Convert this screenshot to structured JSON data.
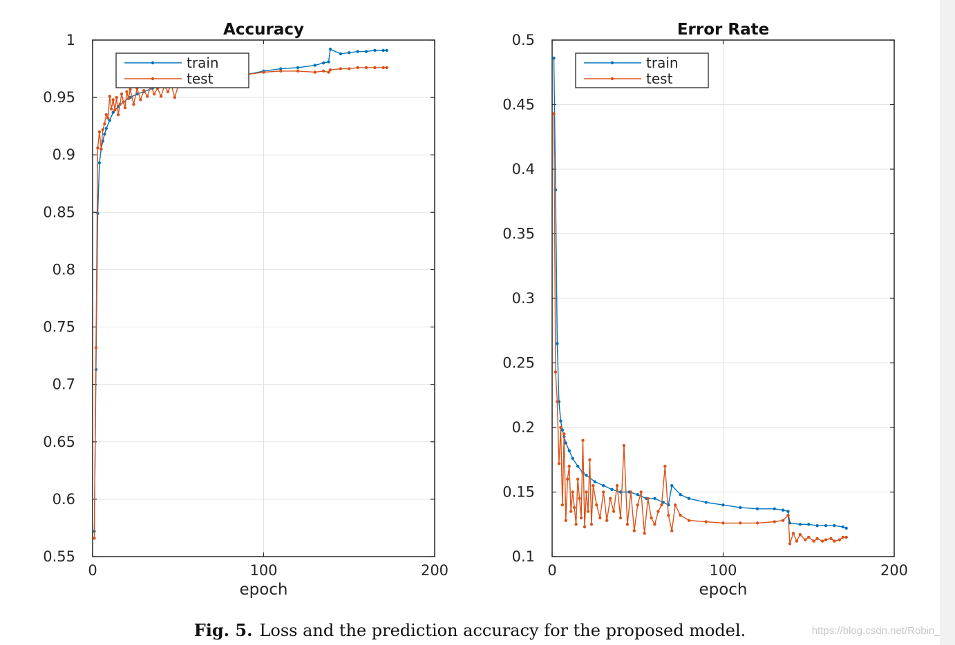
{
  "caption": {
    "label": "Fig. 5.",
    "text": "Loss and the prediction accuracy for the proposed model."
  },
  "watermark": "https://blog.csdn.net/Robin_Pi",
  "chart_data": [
    {
      "type": "line",
      "title": "Accuracy",
      "xlabel": "epoch",
      "ylabel": "",
      "xlim": [
        0,
        200
      ],
      "ylim": [
        0.55,
        1
      ],
      "xticks": [
        0,
        100,
        200
      ],
      "yticks": [
        0.55,
        0.6,
        0.65,
        0.7,
        0.75,
        0.8,
        0.85,
        0.9,
        0.95,
        1
      ],
      "grid": true,
      "legend": "top-left",
      "series": [
        {
          "name": "train",
          "color": "#0072BD",
          "x": [
            1,
            2,
            3,
            4,
            5,
            6,
            7,
            8,
            10,
            12,
            15,
            18,
            22,
            26,
            30,
            35,
            40,
            45,
            50,
            60,
            70,
            80,
            90,
            100,
            110,
            120,
            130,
            135,
            138,
            139,
            145,
            150,
            155,
            160,
            165,
            170,
            172
          ],
          "y": [
            0.572,
            0.713,
            0.849,
            0.893,
            0.905,
            0.912,
            0.918,
            0.923,
            0.93,
            0.937,
            0.942,
            0.946,
            0.95,
            0.953,
            0.955,
            0.958,
            0.96,
            0.961,
            0.962,
            0.964,
            0.966,
            0.967,
            0.97,
            0.973,
            0.975,
            0.976,
            0.978,
            0.98,
            0.981,
            0.992,
            0.988,
            0.989,
            0.99,
            0.99,
            0.991,
            0.991,
            0.991
          ]
        },
        {
          "name": "test",
          "color": "#D95319",
          "x": [
            1,
            2,
            3,
            4,
            5,
            6,
            7,
            8,
            9,
            10,
            11,
            12,
            13,
            14,
            15,
            16,
            17,
            18,
            19,
            20,
            21,
            22,
            24,
            26,
            28,
            30,
            32,
            34,
            36,
            38,
            40,
            42,
            44,
            46,
            48,
            50,
            55,
            60,
            65,
            70,
            80,
            90,
            100,
            110,
            120,
            130,
            135,
            138,
            139,
            145,
            150,
            155,
            160,
            165,
            170,
            172
          ],
          "y": [
            0.566,
            0.732,
            0.906,
            0.92,
            0.905,
            0.922,
            0.927,
            0.935,
            0.932,
            0.951,
            0.94,
            0.948,
            0.939,
            0.95,
            0.935,
            0.944,
            0.953,
            0.946,
            0.941,
            0.955,
            0.949,
            0.957,
            0.944,
            0.958,
            0.948,
            0.956,
            0.951,
            0.96,
            0.953,
            0.958,
            0.951,
            0.96,
            0.955,
            0.961,
            0.95,
            0.96,
            0.962,
            0.963,
            0.964,
            0.967,
            0.968,
            0.97,
            0.972,
            0.973,
            0.973,
            0.972,
            0.973,
            0.972,
            0.974,
            0.975,
            0.975,
            0.976,
            0.976,
            0.976,
            0.976,
            0.976
          ]
        }
      ]
    },
    {
      "type": "line",
      "title": "Error Rate",
      "xlabel": "epoch",
      "ylabel": "",
      "xlim": [
        0,
        200
      ],
      "ylim": [
        0.1,
        0.5
      ],
      "xticks": [
        0,
        100,
        200
      ],
      "yticks": [
        0.1,
        0.15,
        0.2,
        0.25,
        0.3,
        0.35,
        0.4,
        0.45,
        0.5
      ],
      "grid": true,
      "legend": "top-left",
      "series": [
        {
          "name": "train",
          "color": "#0072BD",
          "x": [
            1,
            2,
            3,
            4,
            5,
            6,
            7,
            8,
            10,
            12,
            15,
            18,
            20,
            25,
            30,
            35,
            40,
            45,
            50,
            55,
            60,
            65,
            68,
            70,
            75,
            80,
            90,
            100,
            110,
            120,
            130,
            135,
            138,
            139,
            145,
            150,
            155,
            160,
            165,
            170,
            172
          ],
          "y": [
            0.486,
            0.384,
            0.265,
            0.22,
            0.205,
            0.198,
            0.193,
            0.188,
            0.182,
            0.176,
            0.17,
            0.165,
            0.163,
            0.158,
            0.155,
            0.152,
            0.15,
            0.15,
            0.148,
            0.145,
            0.145,
            0.142,
            0.14,
            0.155,
            0.148,
            0.145,
            0.142,
            0.14,
            0.138,
            0.137,
            0.137,
            0.136,
            0.135,
            0.126,
            0.125,
            0.125,
            0.124,
            0.124,
            0.124,
            0.123,
            0.122
          ]
        },
        {
          "name": "test",
          "color": "#D95319",
          "x": [
            1,
            2,
            3,
            4,
            5,
            6,
            7,
            8,
            9,
            10,
            11,
            12,
            13,
            14,
            15,
            16,
            17,
            18,
            19,
            20,
            21,
            22,
            23,
            24,
            26,
            28,
            30,
            32,
            34,
            36,
            38,
            40,
            42,
            44,
            46,
            48,
            50,
            52,
            54,
            56,
            58,
            60,
            62,
            64,
            66,
            68,
            70,
            72,
            75,
            80,
            90,
            100,
            110,
            120,
            130,
            135,
            138,
            139,
            141,
            143,
            145,
            148,
            150,
            153,
            155,
            158,
            160,
            163,
            165,
            168,
            170,
            172
          ],
          "y": [
            0.443,
            0.243,
            0.22,
            0.172,
            0.2,
            0.14,
            0.195,
            0.128,
            0.16,
            0.17,
            0.135,
            0.15,
            0.138,
            0.125,
            0.16,
            0.145,
            0.13,
            0.19,
            0.123,
            0.15,
            0.135,
            0.175,
            0.125,
            0.155,
            0.14,
            0.13,
            0.15,
            0.128,
            0.145,
            0.135,
            0.155,
            0.13,
            0.186,
            0.125,
            0.15,
            0.12,
            0.14,
            0.15,
            0.118,
            0.145,
            0.13,
            0.125,
            0.135,
            0.14,
            0.17,
            0.132,
            0.12,
            0.14,
            0.132,
            0.128,
            0.127,
            0.126,
            0.126,
            0.126,
            0.127,
            0.128,
            0.132,
            0.11,
            0.118,
            0.112,
            0.117,
            0.113,
            0.115,
            0.112,
            0.114,
            0.112,
            0.113,
            0.114,
            0.112,
            0.113,
            0.115,
            0.115
          ]
        }
      ]
    }
  ]
}
